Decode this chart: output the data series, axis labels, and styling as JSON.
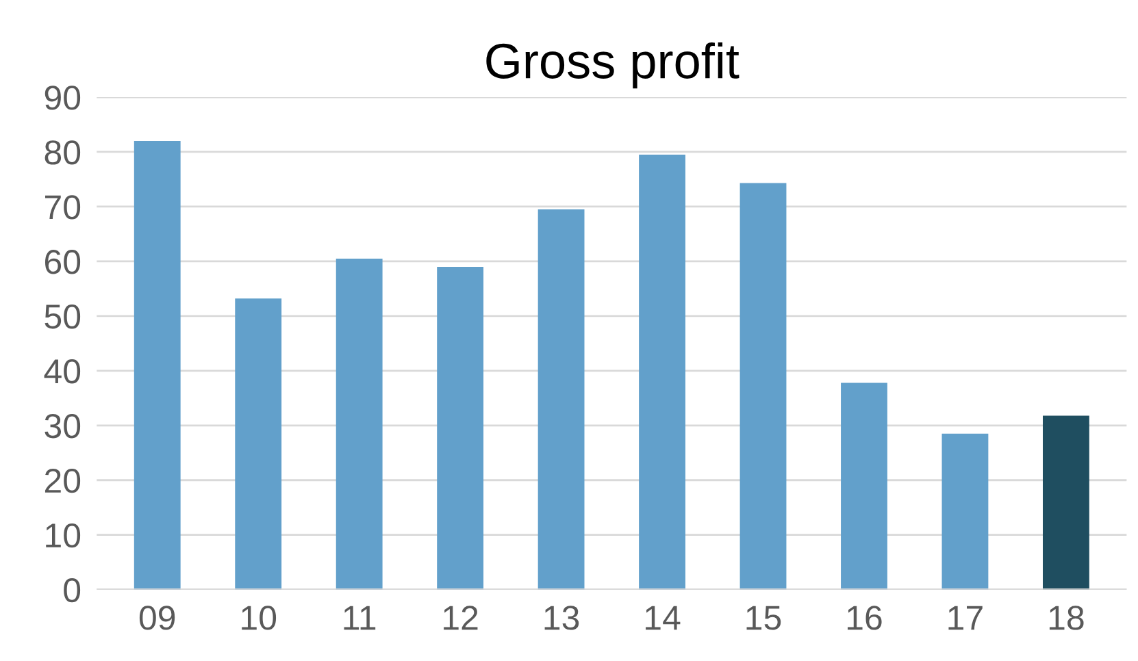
{
  "chart_data": {
    "type": "bar",
    "title": "Gross profit",
    "categories": [
      "09",
      "10",
      "11",
      "12",
      "13",
      "14",
      "15",
      "16",
      "17",
      "18"
    ],
    "values": [
      82,
      53.2,
      60.5,
      59,
      69.5,
      79.5,
      74.3,
      37.8,
      28.5,
      31.8
    ],
    "colors": [
      "#62a0cb",
      "#62a0cb",
      "#62a0cb",
      "#62a0cb",
      "#62a0cb",
      "#62a0cb",
      "#62a0cb",
      "#62a0cb",
      "#62a0cb",
      "#1f4e60"
    ],
    "ylim": [
      0,
      90
    ],
    "yticks": [
      0,
      10,
      20,
      30,
      40,
      50,
      60,
      70,
      80,
      90
    ],
    "grid": "y",
    "legend": false
  }
}
